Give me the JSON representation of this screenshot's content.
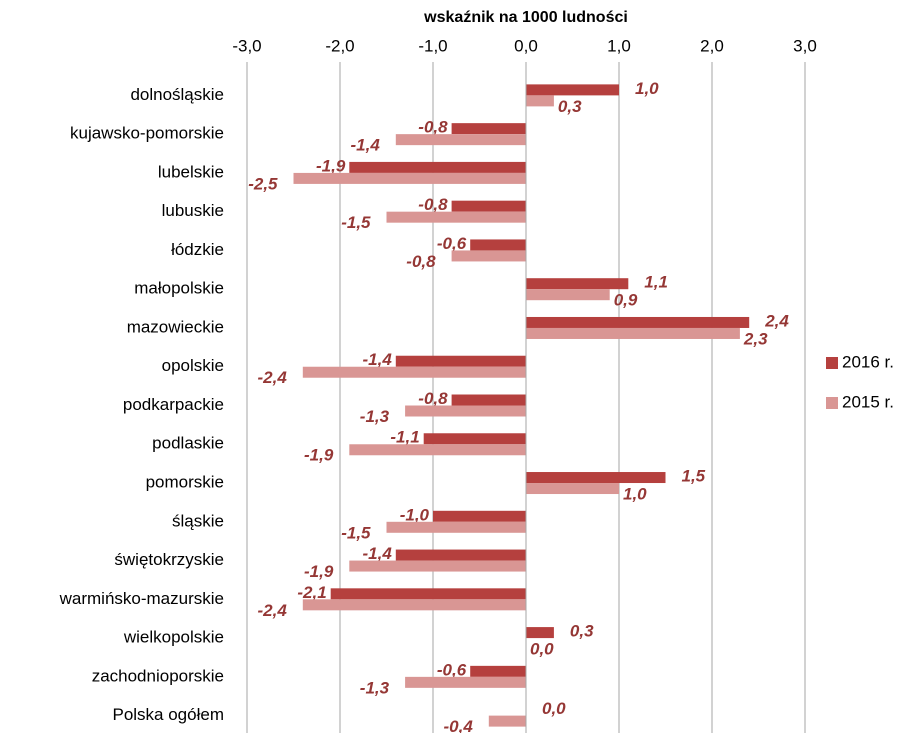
{
  "chart_data": {
    "type": "bar",
    "orientation": "horizontal",
    "title": "wskaźnik na 1000 ludności",
    "categories": [
      "dolnośląskie",
      "kujawsko-pomorskie",
      "lubelskie",
      "lubuskie",
      "łódzkie",
      "małopolskie",
      "mazowieckie",
      "opolskie",
      "podkarpackie",
      "podlaskie",
      "pomorskie",
      "śląskie",
      "świętokrzyskie",
      "warmińsko-mazurskie",
      "wielkopolskie",
      "zachodnioporskie",
      "Polska ogółem"
    ],
    "series": [
      {
        "name": "2016 r.",
        "color": "#b5403e",
        "values": [
          1.0,
          -0.8,
          -1.9,
          -0.8,
          -0.6,
          1.1,
          2.4,
          -1.4,
          -0.8,
          -1.1,
          1.5,
          -1.0,
          -1.4,
          -2.1,
          0.3,
          -0.6,
          0.0
        ],
        "value_labels": [
          "1,0",
          "-0,8",
          "-1,9",
          "-0,8",
          "-0,6",
          "1,1",
          "2,4",
          "-1,4",
          "-0,8",
          "-1,1",
          "1,5",
          "-1,0",
          "-1,4",
          "-2,1",
          "0,3",
          "-0,6",
          "0,0"
        ]
      },
      {
        "name": "2015 r.",
        "color": "#d99694",
        "values": [
          0.3,
          -1.4,
          -2.5,
          -1.5,
          -0.8,
          0.9,
          2.3,
          -2.4,
          -1.3,
          -1.9,
          1.0,
          -1.5,
          -1.9,
          -2.4,
          0.0,
          -1.3,
          -0.4
        ],
        "value_labels": [
          "0,3",
          "-1,4",
          "-2,5",
          "-1,5",
          "-0,8",
          "0,9",
          "2,3",
          "-2,4",
          "-1,3",
          "-1,9",
          "1,0",
          "-1,5",
          "-1,9",
          "-2,4",
          "0,0",
          "-1,3",
          "-0,4"
        ]
      }
    ],
    "xlim": [
      -3,
      3
    ],
    "xticks": [
      {
        "value": -3,
        "label": "-3,0"
      },
      {
        "value": -2,
        "label": "-2,0"
      },
      {
        "value": -1,
        "label": "-1,0"
      },
      {
        "value": 0,
        "label": "0,0"
      },
      {
        "value": 1,
        "label": "1,0"
      },
      {
        "value": 2,
        "label": "2,0"
      },
      {
        "value": 3,
        "label": "3,0"
      }
    ],
    "grid": true,
    "legend": "right"
  }
}
